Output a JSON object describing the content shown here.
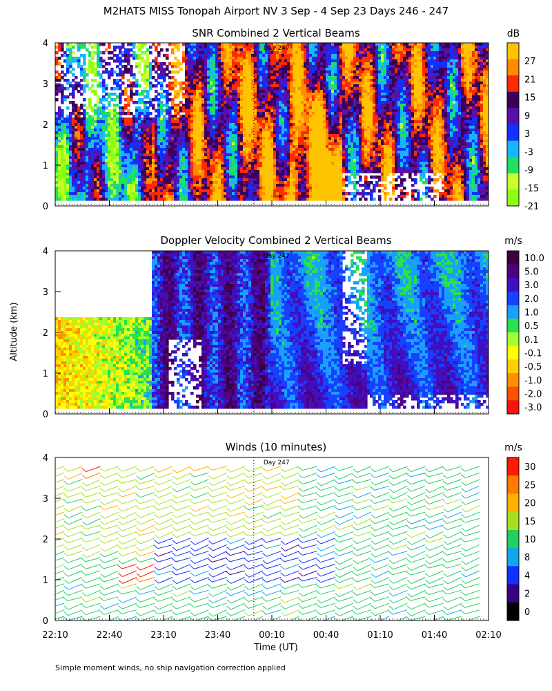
{
  "title": "M2HATS MISS Tonopah Airport NV   3 Sep -  4 Sep 23 Days 246 - 247",
  "ylabel": "Altitude (km)",
  "xlabel": "Time (UT)",
  "footnote": "Simple moment winds, no ship navigation correction applied",
  "day_marker": "Day 247",
  "chart_data": [
    {
      "type": "heatmap",
      "title": "SNR Combined 2 Vertical Beams",
      "units": "dB",
      "ylim": [
        0,
        4
      ],
      "yticks": [
        "0",
        "1",
        "2",
        "3",
        "4"
      ],
      "xlim_minutes": [
        0,
        240
      ],
      "colorbar": {
        "labels": [
          "27",
          "21",
          "15",
          "9",
          "3",
          "-3",
          "-9",
          "-15",
          "-21"
        ],
        "colors": [
          "#ffc400",
          "#ff8c00",
          "#ff2a00",
          "#3c0058",
          "#5a10a8",
          "#1030ff",
          "#18b4ff",
          "#20e060",
          "#c8ff30",
          "#8cff10"
        ]
      }
    },
    {
      "type": "heatmap",
      "title": "Doppler Velocity Combined 2 Vertical Beams",
      "units": "m/s",
      "ylim": [
        0,
        4
      ],
      "yticks": [
        "0",
        "1",
        "2",
        "3",
        "4"
      ],
      "xlim_minutes": [
        0,
        240
      ],
      "colorbar": {
        "labels": [
          "10.0",
          "5.0",
          "3.0",
          "2.0",
          "1.0",
          "0.5",
          "0.1",
          "-0.1",
          "-0.5",
          "-1.0",
          "-2.0",
          "-3.0"
        ],
        "colors": [
          "#3a0040",
          "#500080",
          "#4010c0",
          "#1840ff",
          "#18a0ff",
          "#28e050",
          "#a0ff30",
          "#ffff00",
          "#ffd000",
          "#ff9000",
          "#ff5000",
          "#ff1010"
        ]
      }
    },
    {
      "type": "scatter",
      "title": "Winds (10 minutes)",
      "units": "m/s",
      "ylim": [
        0,
        4
      ],
      "yticks": [
        "0",
        "1",
        "2",
        "3",
        "4"
      ],
      "x_tick_labels": [
        "22:10",
        "22:40",
        "23:10",
        "23:40",
        "00:10",
        "00:40",
        "01:10",
        "01:40",
        "02:10"
      ],
      "x_tick_minutes": [
        0,
        30,
        60,
        90,
        120,
        150,
        180,
        210,
        240
      ],
      "colorbar": {
        "labels": [
          "30",
          "25",
          "20",
          "15",
          "10",
          "8",
          "4",
          "2",
          "0"
        ],
        "colors": [
          "#ff1a00",
          "#ff7a00",
          "#ffb000",
          "#a8e020",
          "#20d060",
          "#10a8e8",
          "#1030ff",
          "#3a0080",
          "#000000"
        ]
      }
    }
  ]
}
